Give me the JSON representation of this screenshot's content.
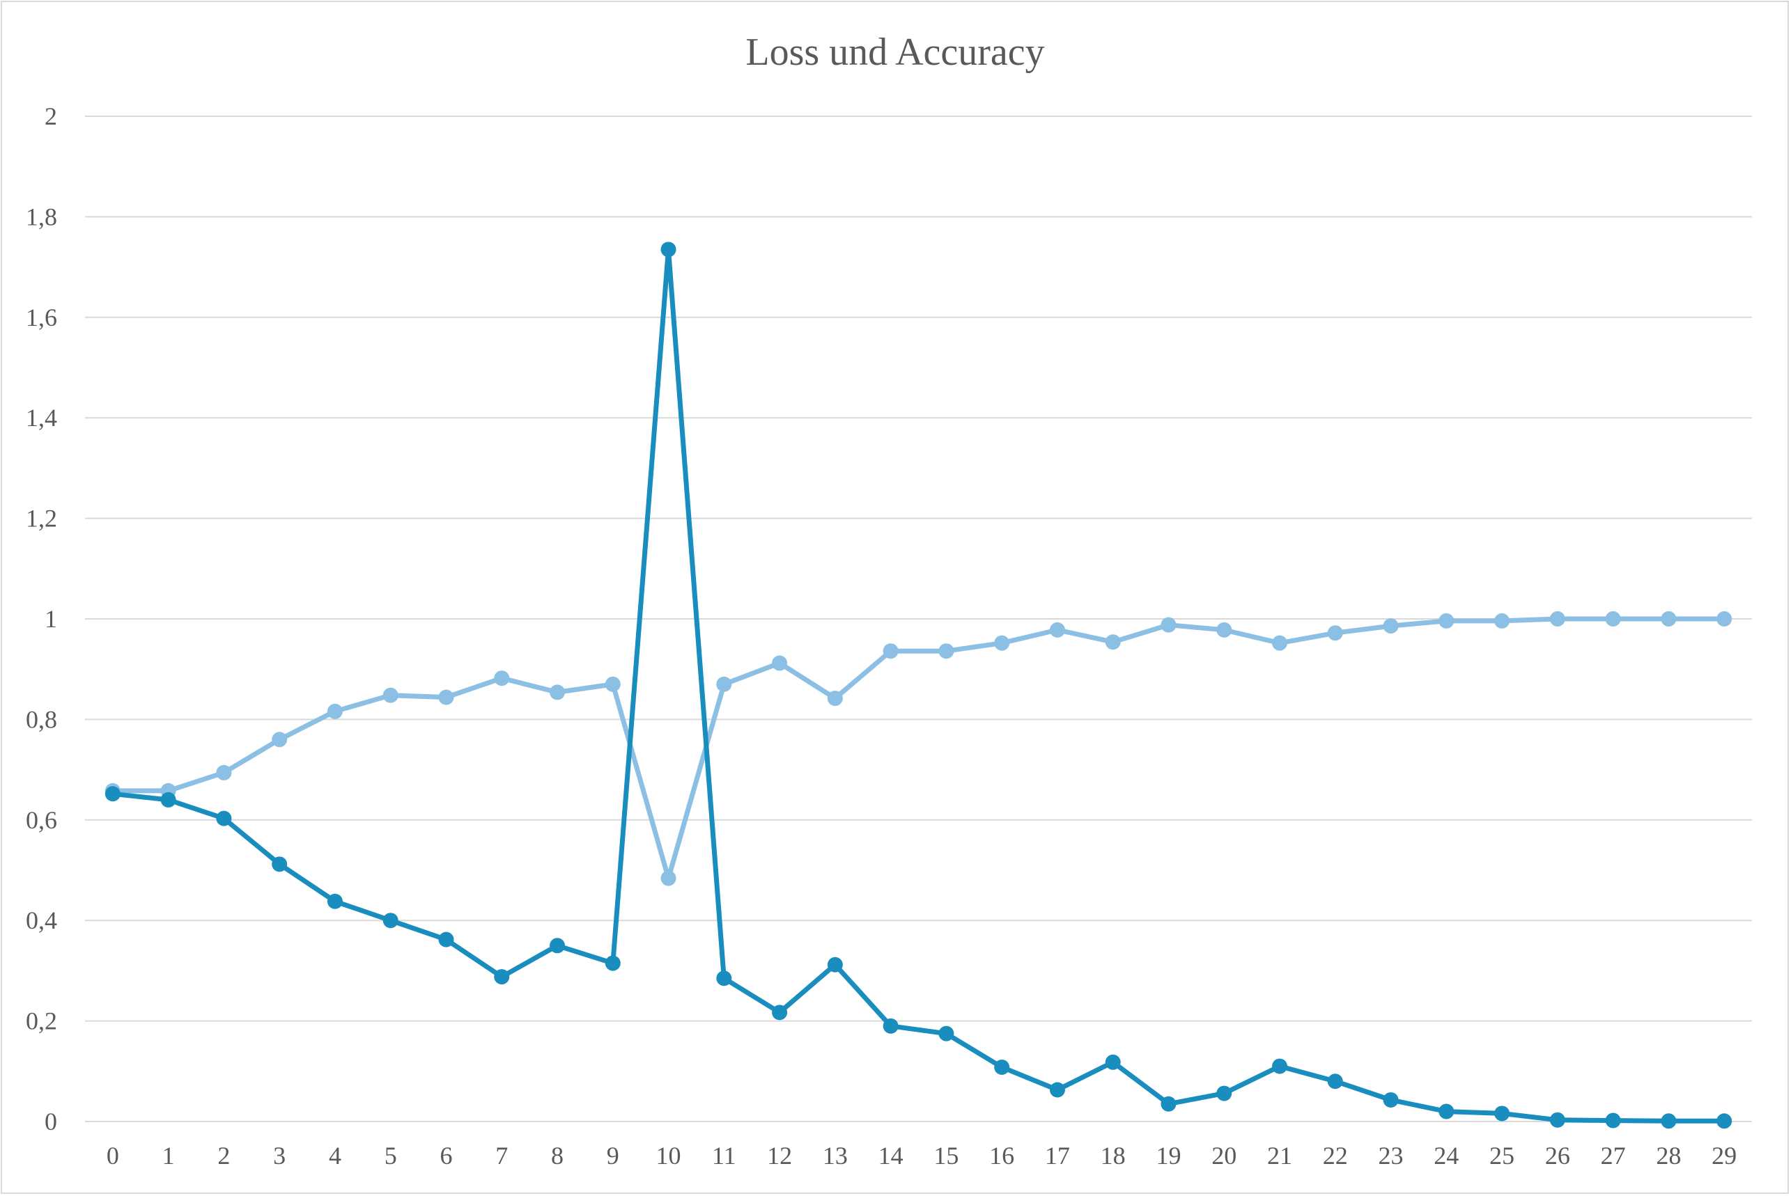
{
  "chart_data": {
    "type": "line",
    "title": "Loss und Accuracy",
    "xlabel": "",
    "ylabel": "",
    "categories": [
      "0",
      "1",
      "2",
      "3",
      "4",
      "5",
      "6",
      "7",
      "8",
      "9",
      "10",
      "11",
      "12",
      "13",
      "14",
      "15",
      "16",
      "17",
      "18",
      "19",
      "20",
      "21",
      "22",
      "23",
      "24",
      "25",
      "26",
      "27",
      "28",
      "29"
    ],
    "ylim": [
      0,
      2
    ],
    "yticks": [
      "0",
      "0,2",
      "0,4",
      "0,6",
      "0,8",
      "1",
      "1,2",
      "1,4",
      "1,6",
      "1,8",
      "2"
    ],
    "grid": true,
    "legend": "none",
    "series": [
      {
        "color": "#1a8dbf",
        "values": [
          0.652,
          0.64,
          0.603,
          0.512,
          0.438,
          0.4,
          0.362,
          0.288,
          0.35,
          0.315,
          1.735,
          0.285,
          0.217,
          0.312,
          0.19,
          0.175,
          0.108,
          0.063,
          0.118,
          0.035,
          0.056,
          0.11,
          0.08,
          0.043,
          0.02,
          0.016,
          0.003,
          0.002,
          0.001,
          0.001
        ]
      },
      {
        "color": "#8bbfe3",
        "values": [
          0.658,
          0.658,
          0.694,
          0.76,
          0.816,
          0.848,
          0.844,
          0.882,
          0.854,
          0.87,
          0.484,
          0.87,
          0.912,
          0.842,
          0.936,
          0.936,
          0.952,
          0.978,
          0.954,
          0.988,
          0.978,
          0.952,
          0.972,
          0.986,
          0.996,
          0.996,
          1.0,
          1.0,
          1.0,
          1.0
        ]
      }
    ]
  }
}
